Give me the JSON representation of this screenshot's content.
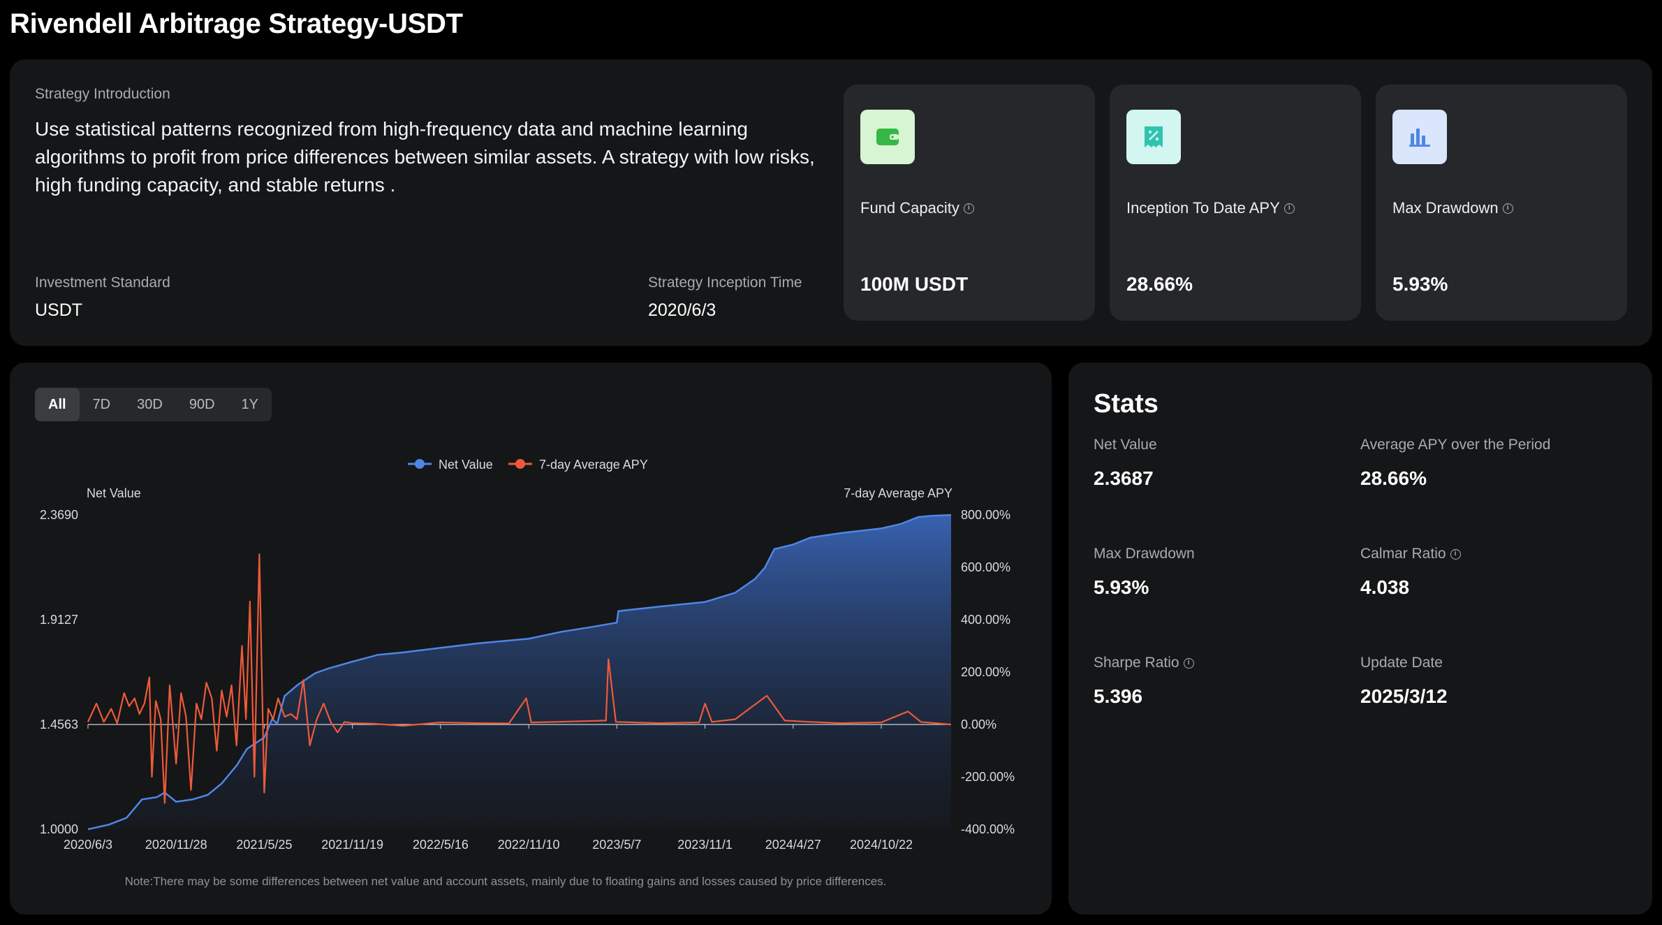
{
  "page": {
    "title": "Rivendell Arbitrage Strategy-USDT"
  },
  "intro": {
    "label": "Strategy Introduction",
    "text": "Use statistical patterns recognized from high-frequency data and machine learning algorithms to profit from price differences between similar assets. A strategy with low risks, high funding capacity, and stable returns .",
    "investment_standard_label": "Investment Standard",
    "investment_standard_value": "USDT",
    "inception_label": "Strategy Inception Time",
    "inception_value": "2020/6/3"
  },
  "cards": [
    {
      "label": "Fund Capacity",
      "value": "100M USDT",
      "icon": "wallet-icon",
      "icon_bg": "#d7f5d3",
      "icon_color": "#35b845"
    },
    {
      "label": "Inception To Date APY",
      "value": "28.66%",
      "icon": "receipt-percent-icon",
      "icon_bg": "#d4f6f1",
      "icon_color": "#2fc3b0"
    },
    {
      "label": "Max Drawdown",
      "value": "5.93%",
      "icon": "bar-chart-icon",
      "icon_bg": "#d9e6fb",
      "icon_color": "#4f86e6"
    }
  ],
  "tabs": [
    {
      "label": "All",
      "active": true
    },
    {
      "label": "7D",
      "active": false
    },
    {
      "label": "30D",
      "active": false
    },
    {
      "label": "90D",
      "active": false
    },
    {
      "label": "1Y",
      "active": false
    }
  ],
  "chart_data": {
    "type": "line",
    "title": "",
    "x_range": [
      "2020-06-03",
      "2025-03-12"
    ],
    "x_ticks": [
      "2020/6/3",
      "2020/11/28",
      "2021/5/25",
      "2021/11/19",
      "2022/5/16",
      "2022/11/10",
      "2023/5/7",
      "2023/11/1",
      "2024/4/27",
      "2024/10/22"
    ],
    "y_left": {
      "label": "Net Value",
      "ticks": [
        "1.0000",
        "1.4563",
        "1.9127",
        "2.3690"
      ],
      "range": [
        1.0,
        2.369
      ]
    },
    "y_right": {
      "label": "7-day Average APY",
      "ticks": [
        "-400.00%",
        "-200.00%",
        "0.00%",
        "200.00%",
        "400.00%",
        "600.00%",
        "800.00%"
      ],
      "range": [
        -400,
        800
      ],
      "unit": "%"
    },
    "legend": {
      "position": "top-center"
    },
    "series": [
      {
        "name": "Net Value",
        "axis": "left",
        "color": "#4f86e6",
        "fill": "area",
        "points": [
          [
            "2020-06-03",
            1.0
          ],
          [
            "2020-07-15",
            1.02
          ],
          [
            "2020-08-20",
            1.05
          ],
          [
            "2020-09-20",
            1.13
          ],
          [
            "2020-10-20",
            1.14
          ],
          [
            "2020-11-05",
            1.16
          ],
          [
            "2020-11-28",
            1.12
          ],
          [
            "2020-12-31",
            1.13
          ],
          [
            "2021-01-31",
            1.15
          ],
          [
            "2021-02-28",
            1.2
          ],
          [
            "2021-03-31",
            1.28
          ],
          [
            "2021-04-20",
            1.35
          ],
          [
            "2021-05-25",
            1.4
          ],
          [
            "2021-06-10",
            1.48
          ],
          [
            "2021-06-20",
            1.46
          ],
          [
            "2021-07-05",
            1.58
          ],
          [
            "2021-08-01",
            1.63
          ],
          [
            "2021-09-05",
            1.68
          ],
          [
            "2021-10-01",
            1.7
          ],
          [
            "2021-11-19",
            1.73
          ],
          [
            "2022-01-10",
            1.76
          ],
          [
            "2022-03-01",
            1.77
          ],
          [
            "2022-05-16",
            1.79
          ],
          [
            "2022-08-01",
            1.81
          ],
          [
            "2022-11-10",
            1.83
          ],
          [
            "2023-01-15",
            1.86
          ],
          [
            "2023-03-15",
            1.88
          ],
          [
            "2023-05-07",
            1.9
          ],
          [
            "2023-05-10",
            1.95
          ],
          [
            "2023-08-01",
            1.97
          ],
          [
            "2023-11-01",
            1.99
          ],
          [
            "2024-01-01",
            2.03
          ],
          [
            "2024-02-10",
            2.09
          ],
          [
            "2024-03-01",
            2.14
          ],
          [
            "2024-03-20",
            2.22
          ],
          [
            "2024-04-27",
            2.24
          ],
          [
            "2024-06-01",
            2.27
          ],
          [
            "2024-08-01",
            2.29
          ],
          [
            "2024-10-22",
            2.31
          ],
          [
            "2024-12-01",
            2.33
          ],
          [
            "2025-01-05",
            2.36
          ],
          [
            "2025-02-01",
            2.365
          ],
          [
            "2025-03-12",
            2.3687
          ]
        ]
      },
      {
        "name": "7-day Average APY",
        "axis": "right",
        "color": "#ee5a3a",
        "fill": "none",
        "points": [
          [
            "2020-06-03",
            10
          ],
          [
            "2020-06-20",
            80
          ],
          [
            "2020-07-05",
            10
          ],
          [
            "2020-07-20",
            60
          ],
          [
            "2020-08-01",
            5
          ],
          [
            "2020-08-15",
            120
          ],
          [
            "2020-08-25",
            70
          ],
          [
            "2020-09-05",
            100
          ],
          [
            "2020-09-15",
            40
          ],
          [
            "2020-09-25",
            80
          ],
          [
            "2020-10-05",
            180
          ],
          [
            "2020-10-10",
            -200
          ],
          [
            "2020-10-18",
            90
          ],
          [
            "2020-10-28",
            20
          ],
          [
            "2020-11-05",
            -300
          ],
          [
            "2020-11-15",
            150
          ],
          [
            "2020-11-28",
            -150
          ],
          [
            "2020-12-08",
            120
          ],
          [
            "2020-12-18",
            30
          ],
          [
            "2020-12-28",
            -250
          ],
          [
            "2021-01-08",
            80
          ],
          [
            "2021-01-18",
            20
          ],
          [
            "2021-01-28",
            160
          ],
          [
            "2021-02-08",
            100
          ],
          [
            "2021-02-18",
            -100
          ],
          [
            "2021-02-28",
            130
          ],
          [
            "2021-03-10",
            30
          ],
          [
            "2021-03-20",
            150
          ],
          [
            "2021-03-30",
            -80
          ],
          [
            "2021-04-10",
            300
          ],
          [
            "2021-04-18",
            20
          ],
          [
            "2021-04-26",
            470
          ],
          [
            "2021-05-05",
            -200
          ],
          [
            "2021-05-15",
            650
          ],
          [
            "2021-05-25",
            -260
          ],
          [
            "2021-06-02",
            60
          ],
          [
            "2021-06-12",
            20
          ],
          [
            "2021-06-22",
            100
          ],
          [
            "2021-07-05",
            30
          ],
          [
            "2021-07-18",
            40
          ],
          [
            "2021-07-30",
            20
          ],
          [
            "2021-08-12",
            170
          ],
          [
            "2021-08-25",
            -80
          ],
          [
            "2021-09-08",
            20
          ],
          [
            "2021-09-22",
            80
          ],
          [
            "2021-10-06",
            10
          ],
          [
            "2021-10-20",
            -30
          ],
          [
            "2021-11-03",
            10
          ],
          [
            "2021-11-19",
            5
          ],
          [
            "2022-01-01",
            3
          ],
          [
            "2022-03-01",
            -5
          ],
          [
            "2022-05-16",
            8
          ],
          [
            "2022-08-01",
            5
          ],
          [
            "2022-10-01",
            4
          ],
          [
            "2022-11-05",
            100
          ],
          [
            "2022-11-15",
            8
          ],
          [
            "2023-01-01",
            10
          ],
          [
            "2023-04-15",
            15
          ],
          [
            "2023-04-20",
            250
          ],
          [
            "2023-05-05",
            10
          ],
          [
            "2023-08-01",
            5
          ],
          [
            "2023-10-20",
            8
          ],
          [
            "2023-11-01",
            80
          ],
          [
            "2023-11-15",
            10
          ],
          [
            "2024-01-01",
            20
          ],
          [
            "2024-03-05",
            110
          ],
          [
            "2024-04-10",
            15
          ],
          [
            "2024-06-01",
            10
          ],
          [
            "2024-08-01",
            5
          ],
          [
            "2024-10-22",
            8
          ],
          [
            "2024-12-15",
            50
          ],
          [
            "2025-01-10",
            10
          ],
          [
            "2025-03-12",
            0
          ]
        ]
      }
    ],
    "note": "Note:There may be some differences between net value and account assets, mainly due to floating gains and losses caused by price differences."
  },
  "stats": {
    "title": "Stats",
    "items": [
      {
        "label": "Net Value",
        "value": "2.3687",
        "info": false
      },
      {
        "label": "Average APY over the Period",
        "value": "28.66%",
        "info": false
      },
      {
        "label": "Max Drawdown",
        "value": "5.93%",
        "info": false
      },
      {
        "label": "Calmar Ratio",
        "value": "4.038",
        "info": true
      },
      {
        "label": "Sharpe Ratio",
        "value": "5.396",
        "info": true
      },
      {
        "label": "Update Date",
        "value": "2025/3/12",
        "info": false
      }
    ]
  }
}
